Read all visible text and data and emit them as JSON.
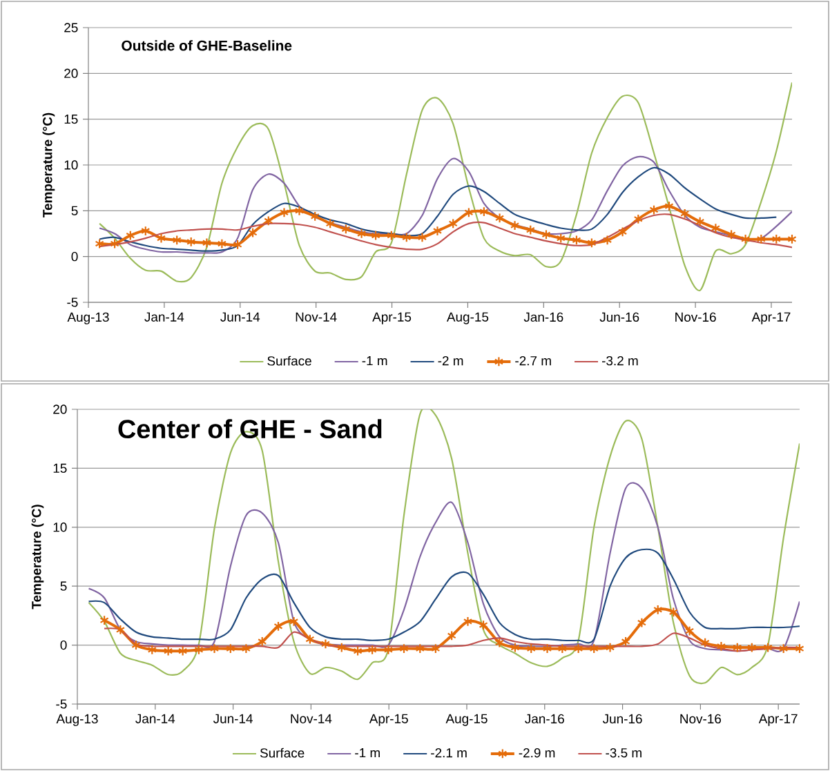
{
  "chart_data": [
    {
      "type": "line",
      "title": "Outside of GHE-Baseline",
      "ylabel": "Temperature (°C)",
      "x": [
        "2013-09-01",
        "2013-10-01",
        "2013-11-01",
        "2013-12-01",
        "2014-01-01",
        "2014-02-01",
        "2014-03-01",
        "2014-04-01",
        "2014-05-01",
        "2014-06-01",
        "2014-07-01",
        "2014-08-01",
        "2014-09-01",
        "2014-10-01",
        "2014-11-01",
        "2014-12-01",
        "2015-01-01",
        "2015-02-01",
        "2015-03-01",
        "2015-04-01",
        "2015-05-01",
        "2015-06-01",
        "2015-07-01",
        "2015-08-01",
        "2015-09-01",
        "2015-10-01",
        "2015-11-01",
        "2015-12-01",
        "2016-01-01",
        "2016-02-01",
        "2016-03-01",
        "2016-04-01",
        "2016-05-01",
        "2016-06-01",
        "2016-07-01",
        "2016-08-01",
        "2016-09-01",
        "2016-10-01",
        "2016-11-01",
        "2016-12-01",
        "2017-01-01",
        "2017-02-01",
        "2017-03-01",
        "2017-04-01",
        "2017-05-01",
        "2017-06-01"
      ],
      "xlim": [
        "2013-08-10",
        "2017-06-01"
      ],
      "xticks": [
        {
          "value": "2013-08-10",
          "label": "Aug-13"
        },
        {
          "value": "2014-01-07",
          "label": "Jan-14"
        },
        {
          "value": "2014-06-06",
          "label": "Jun-14"
        },
        {
          "value": "2014-11-03",
          "label": "Nov-14"
        },
        {
          "value": "2015-04-02",
          "label": "Apr-15"
        },
        {
          "value": "2015-08-30",
          "label": "Aug-15"
        },
        {
          "value": "2016-01-27",
          "label": "Jan-16"
        },
        {
          "value": "2016-06-25",
          "label": "Jun-16"
        },
        {
          "value": "2016-11-22",
          "label": "Nov-16"
        },
        {
          "value": "2017-04-21",
          "label": "Apr-17"
        }
      ],
      "ylim": [
        -5,
        25
      ],
      "yticks": [
        -5,
        0,
        5,
        10,
        15,
        20,
        25
      ],
      "grid": "y",
      "legend": "bottom",
      "series": [
        {
          "name": "Surface",
          "color": "#9bbb59",
          "values": [
            3.6,
            2.0,
            -0.2,
            -1.5,
            -1.6,
            -2.7,
            -2.3,
            1.0,
            8.0,
            12.0,
            14.3,
            13.9,
            8.0,
            1.2,
            -1.6,
            -1.8,
            -2.5,
            -2.2,
            0.5,
            1.5,
            9.0,
            16.0,
            17.3,
            14.5,
            7.5,
            2.0,
            0.6,
            0.1,
            0.2,
            -1.1,
            -0.5,
            4.6,
            11.3,
            15.2,
            17.5,
            16.8,
            11.3,
            5.4,
            -1.0,
            -3.7,
            0.6,
            0.3,
            1.3,
            6.0,
            11.5,
            19.0
          ]
        },
        {
          "name": "-1 m",
          "color": "#8064a2",
          "values": [
            3.1,
            2.5,
            1.3,
            0.8,
            0.5,
            0.5,
            0.4,
            0.4,
            0.5,
            2.0,
            7.3,
            9.0,
            8.0,
            5.5,
            4.3,
            3.7,
            3.2,
            2.7,
            2.5,
            2.5,
            2.5,
            4.5,
            8.5,
            10.7,
            9.3,
            5.8,
            4.2,
            3.5,
            3.0,
            2.5,
            2.5,
            2.8,
            4.0,
            7.2,
            9.9,
            10.9,
            10.3,
            7.2,
            4.5,
            3.2,
            2.7,
            2.3,
            1.9,
            2.0,
            3.3,
            4.9
          ]
        },
        {
          "name": "-2 m",
          "color": "#1f497d",
          "values": [
            1.9,
            2.1,
            1.6,
            1.2,
            0.9,
            0.8,
            0.7,
            0.6,
            0.7,
            1.2,
            3.5,
            4.9,
            5.8,
            5.4,
            4.6,
            4.0,
            3.6,
            3.0,
            2.7,
            2.5,
            2.3,
            2.5,
            4.4,
            6.8,
            7.7,
            7.1,
            5.8,
            4.6,
            4.0,
            3.5,
            3.1,
            2.9,
            3.0,
            4.6,
            7.0,
            8.7,
            9.7,
            9.0,
            7.5,
            6.3,
            5.2,
            4.6,
            4.2,
            4.2,
            4.3,
            null
          ]
        },
        {
          "name": "-2.7 m",
          "color": "#e46c0a",
          "marker": "cross",
          "values": [
            1.4,
            1.4,
            2.3,
            2.8,
            2.0,
            1.8,
            1.6,
            1.5,
            1.4,
            1.3,
            2.6,
            3.9,
            4.8,
            5.0,
            4.4,
            3.6,
            3.0,
            2.5,
            2.3,
            2.3,
            2.1,
            2.1,
            2.8,
            3.6,
            4.8,
            4.9,
            4.2,
            3.4,
            2.9,
            2.4,
            2.0,
            1.8,
            1.5,
            1.8,
            2.7,
            4.1,
            5.1,
            5.5,
            4.7,
            3.8,
            3.1,
            2.4,
            1.9,
            1.9,
            1.9,
            1.9
          ]
        },
        {
          "name": "-3.2 m",
          "color": "#c0504d",
          "values": [
            1.1,
            1.3,
            1.6,
            2.0,
            2.5,
            2.8,
            2.9,
            3.0,
            3.0,
            2.9,
            3.3,
            3.6,
            3.6,
            3.5,
            3.2,
            2.7,
            2.2,
            1.7,
            1.3,
            1.0,
            0.8,
            0.8,
            1.4,
            2.7,
            3.6,
            3.7,
            3.1,
            2.5,
            2.1,
            1.7,
            1.4,
            1.2,
            1.3,
            2.1,
            3.0,
            3.9,
            4.5,
            4.6,
            4.1,
            3.4,
            2.6,
            2.1,
            1.8,
            1.5,
            1.3,
            1.0
          ]
        }
      ]
    },
    {
      "type": "line",
      "title": "Center of GHE - Sand",
      "ylabel": "Temperature (°C)",
      "x": [
        "2013-09-01",
        "2013-10-01",
        "2013-11-01",
        "2013-12-01",
        "2014-01-01",
        "2014-02-01",
        "2014-03-01",
        "2014-04-01",
        "2014-05-01",
        "2014-06-01",
        "2014-07-01",
        "2014-08-01",
        "2014-09-01",
        "2014-10-01",
        "2014-11-01",
        "2014-12-01",
        "2015-01-01",
        "2015-02-01",
        "2015-03-01",
        "2015-04-01",
        "2015-05-01",
        "2015-06-01",
        "2015-07-01",
        "2015-08-01",
        "2015-09-01",
        "2015-10-01",
        "2015-11-01",
        "2015-12-01",
        "2016-01-01",
        "2016-02-01",
        "2016-03-01",
        "2016-04-01",
        "2016-05-01",
        "2016-06-01",
        "2016-07-01",
        "2016-08-01",
        "2016-09-01",
        "2016-10-01",
        "2016-11-01",
        "2016-12-01",
        "2017-01-01",
        "2017-02-01",
        "2017-03-01",
        "2017-04-01",
        "2017-05-01",
        "2017-06-01"
      ],
      "xlim": [
        "2013-08-10",
        "2017-06-01"
      ],
      "xticks": [
        {
          "value": "2013-08-10",
          "label": "Aug-13"
        },
        {
          "value": "2014-01-07",
          "label": "Jan-14"
        },
        {
          "value": "2014-06-06",
          "label": "Jun-14"
        },
        {
          "value": "2014-11-03",
          "label": "Nov-14"
        },
        {
          "value": "2015-04-02",
          "label": "Apr-15"
        },
        {
          "value": "2015-08-30",
          "label": "Aug-15"
        },
        {
          "value": "2016-01-27",
          "label": "Jan-16"
        },
        {
          "value": "2016-06-25",
          "label": "Jun-16"
        },
        {
          "value": "2016-11-22",
          "label": "Nov-16"
        },
        {
          "value": "2017-04-21",
          "label": "Apr-17"
        }
      ],
      "ylim": [
        -5,
        20
      ],
      "yticks": [
        -5,
        0,
        5,
        10,
        15,
        20
      ],
      "grid": "y",
      "legend": "bottom",
      "series": [
        {
          "name": "Surface",
          "color": "#9bbb59",
          "values": [
            3.6,
            2.0,
            -0.7,
            -1.3,
            -1.7,
            -2.5,
            -2.2,
            0.1,
            9.9,
            16.3,
            18.1,
            16.5,
            7.1,
            0.3,
            -2.4,
            -1.9,
            -2.2,
            -2.9,
            -1.5,
            -0.3,
            11.0,
            19.6,
            19.5,
            15.8,
            7.8,
            1.3,
            0.0,
            -0.7,
            -1.5,
            -1.8,
            -1.1,
            0.4,
            10.0,
            16.0,
            19.0,
            17.5,
            10.0,
            1.9,
            -2.6,
            -3.2,
            -1.9,
            -2.5,
            -1.9,
            0.0,
            9.1,
            17.1
          ]
        },
        {
          "name": "-1 m",
          "color": "#8064a2",
          "values": [
            4.8,
            4.0,
            1.3,
            0.3,
            0.1,
            0.0,
            0.0,
            0.0,
            0.3,
            6.7,
            11.0,
            11.2,
            8.7,
            2.0,
            0.5,
            0.1,
            0.0,
            0.0,
            0.0,
            0.0,
            3.0,
            7.5,
            10.4,
            12.1,
            8.7,
            3.5,
            0.7,
            0.0,
            -0.1,
            -0.1,
            0.0,
            0.1,
            0.4,
            7.8,
            13.3,
            13.3,
            10.0,
            3.9,
            0.4,
            -0.3,
            -0.4,
            -0.5,
            -0.4,
            -0.3,
            -0.3,
            3.7
          ]
        },
        {
          "name": "-2.1 m",
          "color": "#1f497d",
          "values": [
            3.7,
            3.6,
            2.2,
            1.1,
            0.7,
            0.6,
            0.5,
            0.5,
            0.5,
            1.3,
            4.0,
            5.6,
            5.9,
            3.6,
            1.5,
            0.7,
            0.5,
            0.5,
            0.4,
            0.5,
            1.1,
            2.0,
            3.9,
            5.8,
            6.1,
            4.3,
            1.9,
            0.9,
            0.5,
            0.5,
            0.4,
            0.4,
            0.5,
            5.0,
            7.4,
            8.1,
            7.8,
            5.6,
            2.8,
            1.5,
            1.4,
            1.4,
            1.5,
            1.5,
            1.5,
            1.6
          ]
        },
        {
          "name": "-2.9 m",
          "color": "#e46c0a",
          "marker": "cross",
          "values": [
            null,
            2.1,
            1.3,
            0.0,
            -0.4,
            -0.5,
            -0.5,
            -0.4,
            -0.3,
            -0.3,
            -0.3,
            0.3,
            1.6,
            2.0,
            0.5,
            0.1,
            -0.2,
            -0.5,
            -0.4,
            -0.4,
            -0.3,
            -0.3,
            -0.3,
            0.8,
            2.0,
            1.7,
            0.2,
            -0.2,
            -0.3,
            -0.3,
            -0.3,
            -0.3,
            -0.3,
            -0.2,
            0.3,
            1.9,
            3.0,
            2.8,
            1.2,
            0.2,
            -0.1,
            -0.2,
            -0.2,
            -0.2,
            -0.3,
            -0.3
          ]
        },
        {
          "name": "-3.5 m",
          "color": "#c0504d",
          "values": [
            null,
            1.4,
            1.3,
            0.1,
            -0.1,
            -0.1,
            -0.1,
            -0.1,
            -0.1,
            -0.1,
            -0.1,
            -0.1,
            -0.2,
            1.1,
            0.5,
            0.0,
            -0.1,
            -0.1,
            -0.1,
            -0.1,
            -0.1,
            -0.1,
            -0.1,
            -0.1,
            0.0,
            0.4,
            0.6,
            0.3,
            0.1,
            0.0,
            -0.1,
            -0.1,
            -0.1,
            -0.1,
            -0.1,
            -0.1,
            0.1,
            1.0,
            0.6,
            0.0,
            -0.3,
            -0.5,
            -0.4,
            -0.3,
            -0.2,
            -0.2
          ]
        }
      ]
    }
  ]
}
